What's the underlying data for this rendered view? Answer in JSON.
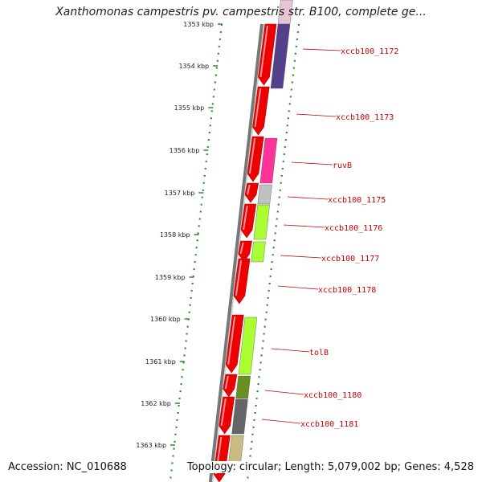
{
  "title": "Xanthomonas campestris pv. campestris str. B100, complete ge...",
  "footer": {
    "accession": "Accession: NC_010688",
    "summary": "Topology: circular; Length: 5,079,002 bp; Genes: 4,528"
  },
  "axis_labels": [
    "1353 kbp",
    "1354 kbp",
    "1355 kbp",
    "1356 kbp",
    "1357 kbp",
    "1358 kbp",
    "1359 kbp",
    "1360 kbp",
    "1361 kbp",
    "1362 kbp",
    "1363 kbp"
  ],
  "colors": {
    "cds": "#ee0000",
    "dotted_ring": "#2e8b2e",
    "backbone": "#777777",
    "label": "#cc0000"
  },
  "cog_features": [
    {
      "id": "cog-1",
      "color": "#e8c4d8"
    },
    {
      "id": "cog-2",
      "color": "#54418c"
    },
    {
      "id": "cog-3",
      "color": "#ff3399"
    },
    {
      "id": "cog-4",
      "color": "#c0c0c0"
    },
    {
      "id": "cog-5",
      "color": "#aaff33"
    },
    {
      "id": "cog-6",
      "color": "#aaff33"
    },
    {
      "id": "cog-7",
      "color": "#aaff33"
    },
    {
      "id": "cog-8",
      "color": "#6b8e23"
    },
    {
      "id": "cog-9",
      "color": "#666666"
    },
    {
      "id": "cog-10",
      "color": "#c8bc80"
    }
  ],
  "gene_labels": [
    "xccb100_1172",
    "xccb100_1173",
    "ruvB",
    "xccb100_1175",
    "xccb100_1176",
    "xccb100_1177",
    "xccb100_1178",
    "tolB",
    "xccb100_1180",
    "xccb100_1181"
  ]
}
